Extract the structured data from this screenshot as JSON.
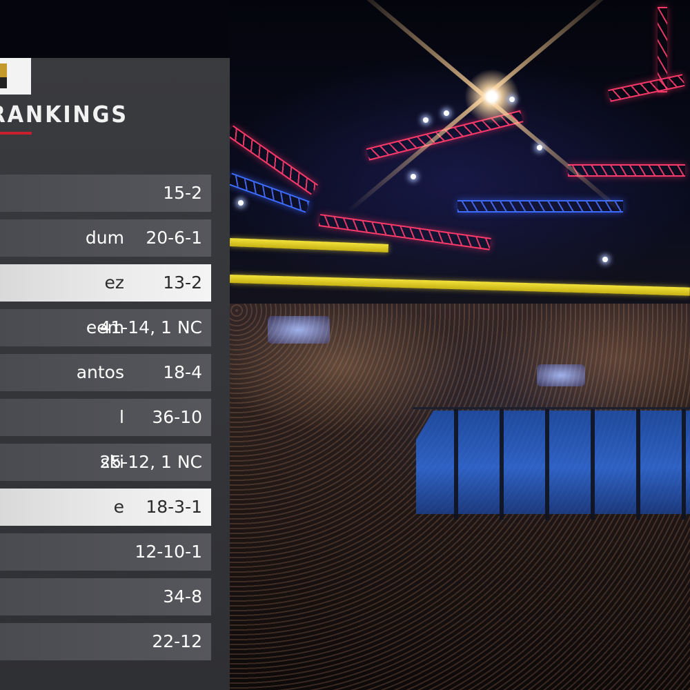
{
  "panel": {
    "title": "T RANKINGS",
    "accent_color": "#c8202c",
    "logo_icon": "ufc-logo-icon"
  },
  "rankings": [
    {
      "name": "",
      "record": "15-2",
      "highlighted": false
    },
    {
      "name": "dum",
      "record": "20-6-1",
      "highlighted": false
    },
    {
      "name": "ez",
      "record": "13-2",
      "highlighted": true
    },
    {
      "name": "eem",
      "record": "41-14, 1 NC",
      "highlighted": false
    },
    {
      "name": "antos",
      "record": "18-4",
      "highlighted": false
    },
    {
      "name": "l",
      "record": "36-10",
      "highlighted": false
    },
    {
      "name": "ski",
      "record": "25-12, 1 NC",
      "highlighted": false
    },
    {
      "name": "e",
      "record": "18-3-1",
      "highlighted": true
    },
    {
      "name": "",
      "record": "12-10-1",
      "highlighted": false
    },
    {
      "name": "",
      "record": "34-8",
      "highlighted": false
    },
    {
      "name": "",
      "record": "22-12",
      "highlighted": false
    }
  ]
}
